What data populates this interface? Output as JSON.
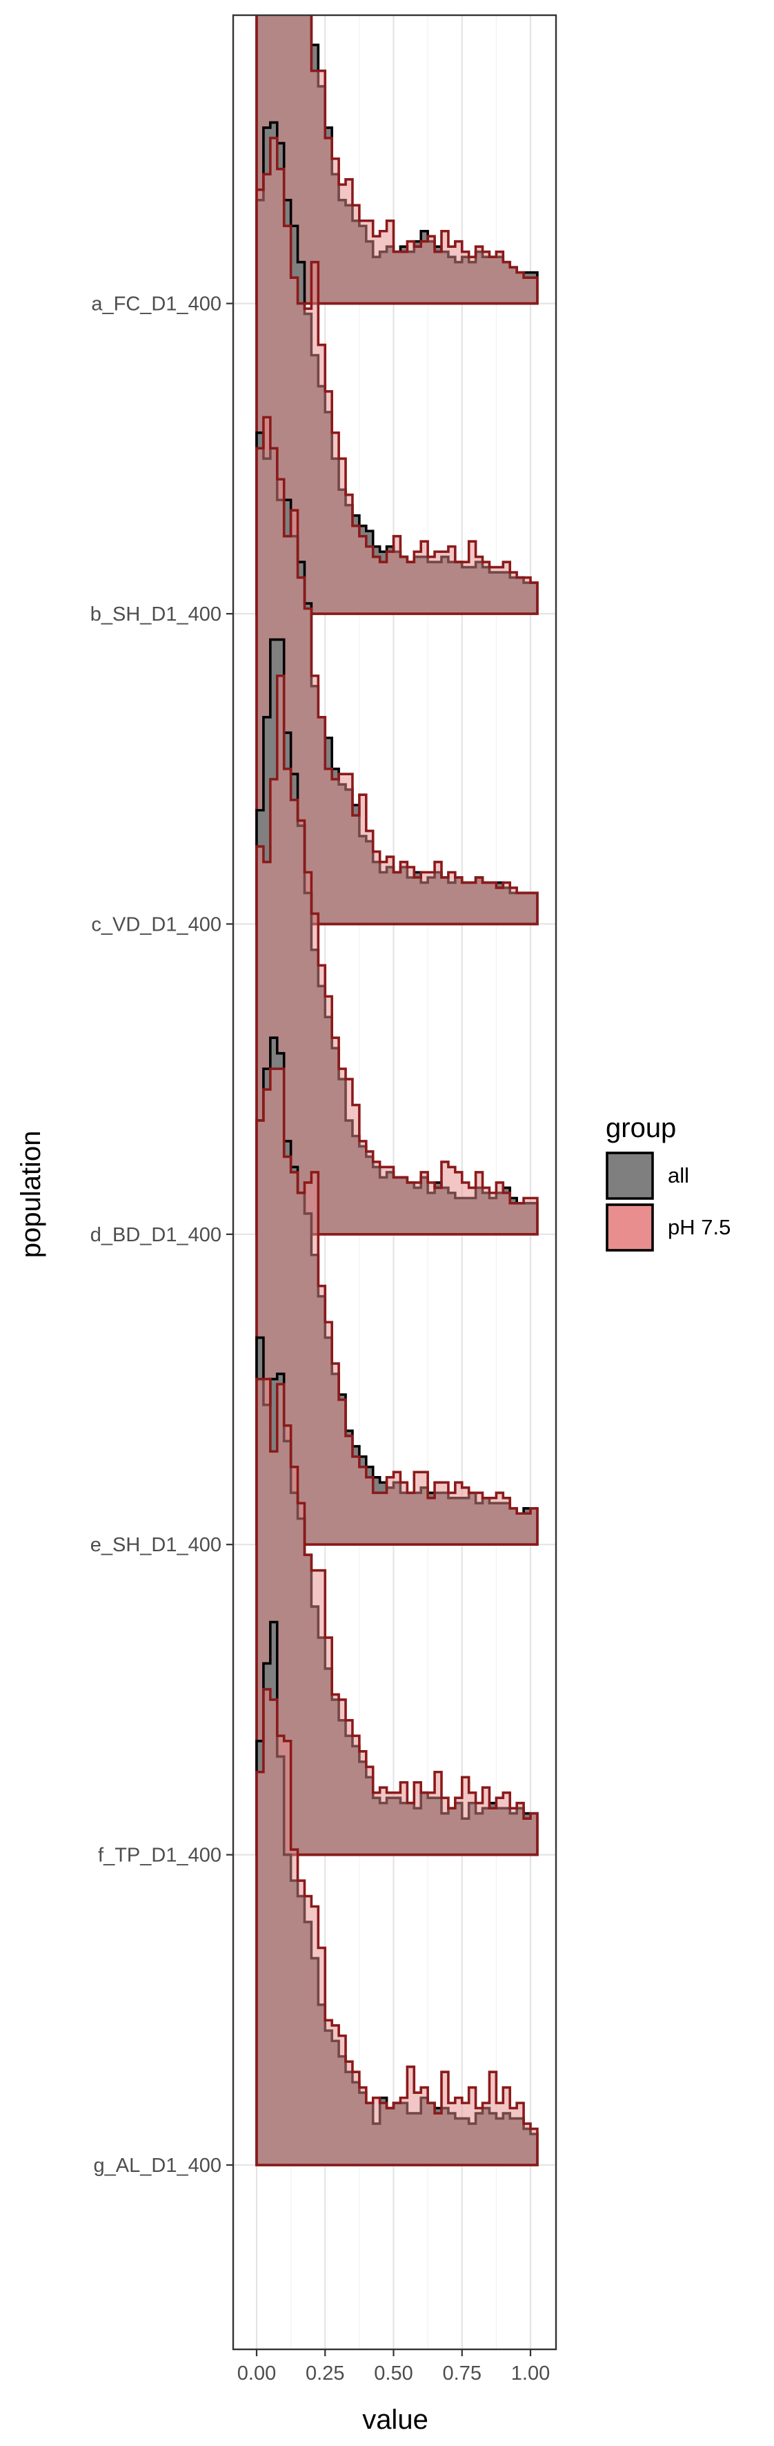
{
  "chart_data": {
    "type": "area",
    "subtype": "ridgeline step-histogram",
    "xlabel": "value",
    "ylabel": "population",
    "xlim": [
      -0.02,
      1.02
    ],
    "x_ticks": [
      0.0,
      0.25,
      0.5,
      0.75,
      1.0
    ],
    "x_tick_labels": [
      "0.00",
      "0.25",
      "0.50",
      "0.75",
      "1.00"
    ],
    "bin_width": 0.025,
    "bin_start": 0.0,
    "ridge_scale": 0.6,
    "grid": true,
    "theme": "bw",
    "legend": {
      "title": "group",
      "position": "right",
      "entries": [
        {
          "label": "all",
          "color": "#7f7f7f"
        },
        {
          "label": "pH 7.5",
          "color": "#e88e8e"
        }
      ]
    },
    "colors": {
      "all_fill": "#808080",
      "all_line": "#000000",
      "ph_fill": "#e88e8e",
      "ph_line": "#8b1a1a",
      "overlap": "#a24f4f"
    },
    "populations": [
      {
        "label": "g_AL_D1_400",
        "all": [
          0.82,
          0.97,
          1.05,
          0.79,
          0.6,
          0.55,
          0.52,
          0.47,
          0.4,
          0.31,
          0.26,
          0.24,
          0.21,
          0.18,
          0.16,
          0.14,
          0.12,
          0.08,
          0.13,
          0.11,
          0.12,
          0.12,
          0.1,
          0.1,
          0.13,
          0.12,
          0.11,
          0.11,
          0.1,
          0.09,
          0.09,
          0.08,
          0.1,
          0.11,
          0.1,
          0.09,
          0.1,
          0.09,
          0.09,
          0.07,
          0.06
        ],
        "ph": [
          0.76,
          0.92,
          0.9,
          0.83,
          0.82,
          0.61,
          0.55,
          0.52,
          0.5,
          0.42,
          0.28,
          0.27,
          0.25,
          0.2,
          0.18,
          0.15,
          0.12,
          0.13,
          0.12,
          0.11,
          0.12,
          0.13,
          0.19,
          0.14,
          0.15,
          0.12,
          0.1,
          0.18,
          0.12,
          0.13,
          0.12,
          0.15,
          0.11,
          0.12,
          0.18,
          0.12,
          0.15,
          0.11,
          0.12,
          0.08,
          0.07
        ]
      },
      {
        "label": "f_TP_D1_400",
        "all": [
          1.0,
          0.87,
          0.92,
          0.93,
          0.8,
          0.7,
          0.65,
          0.58,
          0.48,
          0.42,
          0.36,
          0.3,
          0.26,
          0.23,
          0.21,
          0.18,
          0.15,
          0.11,
          0.1,
          0.11,
          0.11,
          0.1,
          0.1,
          0.09,
          0.12,
          0.11,
          0.11,
          0.08,
          0.09,
          0.1,
          0.07,
          0.1,
          0.08,
          0.09,
          0.1,
          0.09,
          0.09,
          0.08,
          0.09,
          0.08,
          0.08
        ],
        "ph": [
          0.92,
          0.92,
          0.78,
          0.91,
          0.83,
          0.75,
          0.68,
          0.58,
          0.55,
          0.55,
          0.42,
          0.31,
          0.3,
          0.26,
          0.23,
          0.2,
          0.17,
          0.12,
          0.13,
          0.12,
          0.12,
          0.14,
          0.1,
          0.14,
          0.12,
          0.12,
          0.16,
          0.11,
          0.09,
          0.11,
          0.15,
          0.12,
          0.1,
          0.13,
          0.09,
          0.11,
          0.12,
          0.09,
          0.1,
          0.07,
          0.08
        ]
      },
      {
        "label": "e_SH_D1_400",
        "all": [
          0.82,
          0.92,
          0.98,
          0.95,
          0.78,
          0.73,
          0.68,
          0.64,
          0.56,
          0.48,
          0.4,
          0.33,
          0.29,
          0.22,
          0.19,
          0.17,
          0.15,
          0.13,
          0.12,
          0.11,
          0.12,
          0.1,
          0.1,
          0.1,
          0.11,
          0.1,
          0.1,
          0.1,
          0.09,
          0.09,
          0.09,
          0.1,
          0.08,
          0.09,
          0.08,
          0.08,
          0.08,
          0.07,
          0.06,
          0.07,
          0.07
        ],
        "ph": [
          0.82,
          0.88,
          0.92,
          0.92,
          0.75,
          0.72,
          0.68,
          0.7,
          0.72,
          0.5,
          0.43,
          0.35,
          0.28,
          0.21,
          0.17,
          0.15,
          0.13,
          0.1,
          0.1,
          0.13,
          0.14,
          0.12,
          0.1,
          0.14,
          0.14,
          0.09,
          0.12,
          0.12,
          0.1,
          0.12,
          0.11,
          0.1,
          0.1,
          0.09,
          0.09,
          0.1,
          0.09,
          0.07,
          0.06,
          0.06,
          0.07
        ]
      },
      {
        "label": "d_BD_D1_400",
        "all": [
          0.82,
          1.0,
          1.15,
          1.15,
          0.97,
          0.89,
          0.79,
          0.66,
          0.55,
          0.48,
          0.42,
          0.36,
          0.3,
          0.22,
          0.19,
          0.17,
          0.15,
          0.13,
          0.11,
          0.12,
          0.11,
          0.11,
          0.1,
          0.09,
          0.11,
          0.08,
          0.1,
          0.09,
          0.08,
          0.07,
          0.07,
          0.07,
          0.09,
          0.08,
          0.07,
          0.08,
          0.09,
          0.07,
          0.06,
          0.06,
          0.06
        ],
        "ph": [
          0.75,
          0.72,
          0.88,
          1.08,
          0.9,
          0.84,
          0.8,
          0.7,
          0.62,
          0.52,
          0.46,
          0.38,
          0.32,
          0.3,
          0.25,
          0.18,
          0.16,
          0.14,
          0.13,
          0.13,
          0.11,
          0.11,
          0.1,
          0.1,
          0.12,
          0.1,
          0.09,
          0.14,
          0.13,
          0.12,
          0.1,
          0.09,
          0.12,
          0.09,
          0.08,
          0.1,
          0.08,
          0.06,
          0.06,
          0.07,
          0.07
        ]
      },
      {
        "label": "c_VD_D1_400",
        "all": [
          0.95,
          0.9,
          0.92,
          0.82,
          0.82,
          0.75,
          0.7,
          0.62,
          0.46,
          0.4,
          0.36,
          0.3,
          0.27,
          0.26,
          0.23,
          0.17,
          0.16,
          0.12,
          0.1,
          0.11,
          0.1,
          0.11,
          0.09,
          0.1,
          0.08,
          0.09,
          0.1,
          0.09,
          0.08,
          0.09,
          0.08,
          0.08,
          0.09,
          0.08,
          0.08,
          0.08,
          0.07,
          0.06,
          0.06,
          0.06,
          0.06
        ],
        "ph": [
          0.92,
          0.98,
          0.92,
          0.86,
          0.75,
          0.8,
          0.67,
          0.61,
          0.48,
          0.4,
          0.3,
          0.28,
          0.29,
          0.29,
          0.21,
          0.25,
          0.18,
          0.14,
          0.12,
          0.13,
          0.1,
          0.12,
          0.11,
          0.09,
          0.1,
          0.1,
          0.12,
          0.09,
          0.1,
          0.09,
          0.08,
          0.08,
          0.09,
          0.08,
          0.08,
          0.07,
          0.08,
          0.07,
          0.06,
          0.06,
          0.06
        ]
      },
      {
        "label": "b_SH_D1_400",
        "all": [
          0.8,
          0.94,
          0.95,
          0.91,
          0.8,
          0.75,
          0.68,
          0.58,
          0.5,
          0.44,
          0.39,
          0.3,
          0.24,
          0.21,
          0.19,
          0.17,
          0.16,
          0.13,
          0.12,
          0.13,
          0.12,
          0.11,
          0.1,
          0.11,
          0.11,
          0.1,
          0.1,
          0.11,
          0.1,
          0.1,
          0.09,
          0.09,
          0.1,
          0.09,
          0.08,
          0.08,
          0.08,
          0.07,
          0.07,
          0.06,
          0.06
        ],
        "ph": [
          0.82,
          0.85,
          0.92,
          0.86,
          0.75,
          0.65,
          0.6,
          0.59,
          0.68,
          0.52,
          0.43,
          0.35,
          0.3,
          0.23,
          0.17,
          0.15,
          0.13,
          0.11,
          0.1,
          0.12,
          0.15,
          0.11,
          0.1,
          0.12,
          0.14,
          0.11,
          0.12,
          0.12,
          0.13,
          0.1,
          0.1,
          0.14,
          0.11,
          0.1,
          0.09,
          0.09,
          0.1,
          0.08,
          0.07,
          0.07,
          0.06
        ]
      },
      {
        "label": "a_FC_D1_400",
        "all": [
          0.82,
          0.9,
          0.96,
          0.97,
          0.92,
          0.8,
          0.72,
          0.6,
          0.5,
          0.42,
          0.34,
          0.25,
          0.2,
          0.19,
          0.16,
          0.15,
          0.12,
          0.09,
          0.1,
          0.11,
          0.1,
          0.11,
          0.1,
          0.12,
          0.14,
          0.12,
          0.11,
          0.1,
          0.09,
          0.08,
          0.09,
          0.08,
          0.1,
          0.09,
          0.09,
          0.09,
          0.08,
          0.07,
          0.06,
          0.06,
          0.06
        ],
        "ph": [
          0.75,
          0.72,
          0.88,
          0.95,
          0.98,
          0.7,
          0.6,
          0.58,
          0.45,
          0.45,
          0.32,
          0.28,
          0.23,
          0.24,
          0.19,
          0.16,
          0.16,
          0.13,
          0.14,
          0.16,
          0.1,
          0.1,
          0.12,
          0.11,
          0.12,
          0.13,
          0.1,
          0.14,
          0.11,
          0.12,
          0.1,
          0.09,
          0.11,
          0.1,
          0.09,
          0.1,
          0.08,
          0.07,
          0.06,
          0.05,
          0.05
        ]
      }
    ]
  }
}
